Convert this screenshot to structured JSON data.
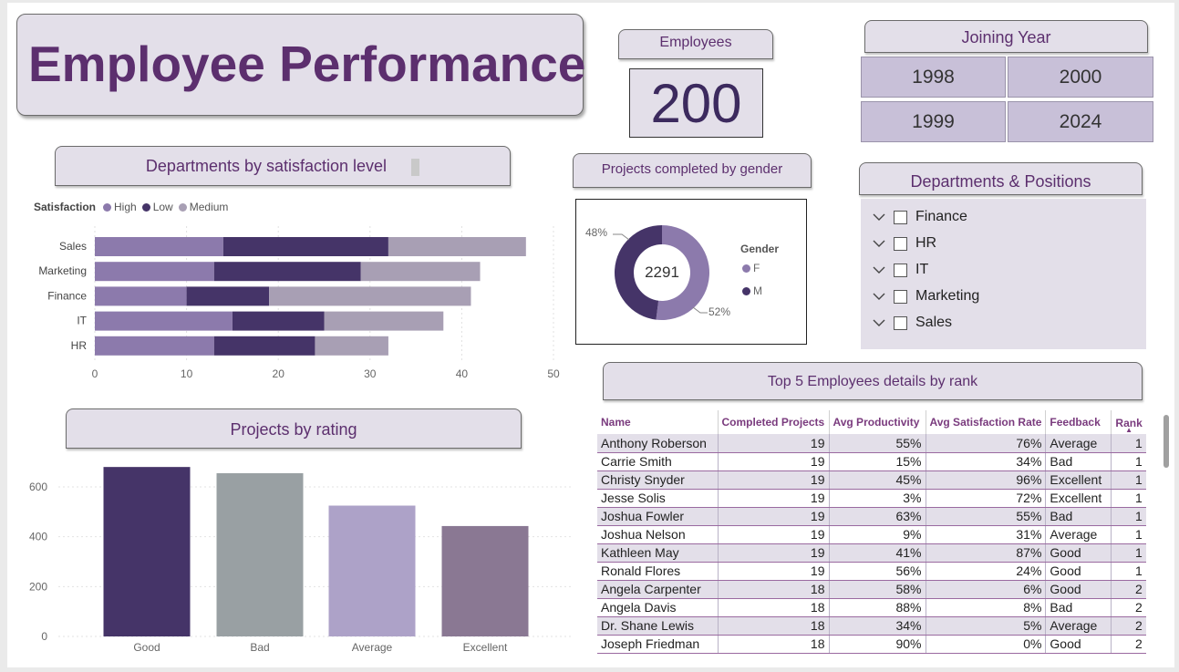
{
  "title": "Employee Performance",
  "kpi": {
    "label": "Employees",
    "value": "200"
  },
  "joining_year": {
    "label": "Joining Year",
    "buttons": [
      "1998",
      "2000",
      "1999",
      "2024"
    ]
  },
  "dept_positions": {
    "label": "Departments & Positions",
    "items": [
      "Finance",
      "HR",
      "IT",
      "Marketing",
      "Sales"
    ]
  },
  "satisfaction_chart": {
    "header": "Departments by satisfaction level",
    "legend_title": "Satisfaction",
    "legend": [
      "High",
      "Low",
      "Medium"
    ],
    "colors": {
      "High": "#8c7aac",
      "Low": "#453468",
      "Medium": "#a89fb4"
    }
  },
  "gender_chart": {
    "header": "Projects completed by gender",
    "center_value": "2291",
    "legend_title": "Gender",
    "legend": [
      "F",
      "M"
    ],
    "pct_m": "48%",
    "pct_f": "52%",
    "colors": {
      "F": "#8c7aac",
      "M": "#453468"
    }
  },
  "rating_chart": {
    "header": "Projects by rating"
  },
  "top5": {
    "header": "Top 5 Employees details by rank",
    "columns": [
      "Name",
      "Completed Projects",
      "Avg Productivity",
      "Avg Satisfaction Rate",
      "Feedback",
      "Rank"
    ],
    "rows": [
      [
        "Anthony Roberson",
        "19",
        "55%",
        "76%",
        "Average",
        "1"
      ],
      [
        "Carrie Smith",
        "19",
        "15%",
        "34%",
        "Bad",
        "1"
      ],
      [
        "Christy Snyder",
        "19",
        "45%",
        "96%",
        "Excellent",
        "1"
      ],
      [
        "Jesse Solis",
        "19",
        "3%",
        "72%",
        "Excellent",
        "1"
      ],
      [
        "Joshua Fowler",
        "19",
        "63%",
        "55%",
        "Bad",
        "1"
      ],
      [
        "Joshua Nelson",
        "19",
        "9%",
        "31%",
        "Average",
        "1"
      ],
      [
        "Kathleen May",
        "19",
        "41%",
        "87%",
        "Good",
        "1"
      ],
      [
        "Ronald Flores",
        "19",
        "56%",
        "24%",
        "Good",
        "1"
      ],
      [
        "Angela Carpenter",
        "18",
        "58%",
        "6%",
        "Good",
        "2"
      ],
      [
        "Angela Davis",
        "18",
        "88%",
        "8%",
        "Bad",
        "2"
      ],
      [
        "Dr. Shane Lewis",
        "18",
        "34%",
        "5%",
        "Average",
        "2"
      ],
      [
        "Joseph Friedman",
        "18",
        "90%",
        "0%",
        "Good",
        "2"
      ]
    ]
  },
  "chart_data": [
    {
      "type": "bar",
      "orientation": "horizontal",
      "stacked": true,
      "title": "Departments by satisfaction level",
      "categories": [
        "Sales",
        "Marketing",
        "Finance",
        "IT",
        "HR"
      ],
      "series": [
        {
          "name": "High",
          "values": [
            14,
            13,
            10,
            15,
            13
          ]
        },
        {
          "name": "Low",
          "values": [
            18,
            16,
            9,
            10,
            11
          ]
        },
        {
          "name": "Medium",
          "values": [
            15,
            13,
            22,
            13,
            8
          ]
        }
      ],
      "xlim": [
        0,
        50
      ],
      "xticks": [
        0,
        10,
        20,
        30,
        40,
        50
      ],
      "grid": true,
      "legend": "top-left"
    },
    {
      "type": "pie",
      "donut": true,
      "title": "Projects completed by gender",
      "categories": [
        "F",
        "M"
      ],
      "values": [
        52,
        48
      ],
      "center_label": "2291",
      "legend": "right"
    },
    {
      "type": "bar",
      "title": "Projects by rating",
      "categories": [
        "Good",
        "Bad",
        "Average",
        "Excellent"
      ],
      "values": [
        680,
        655,
        525,
        443
      ],
      "colors": [
        "#453468",
        "#99a0a3",
        "#ada2c8",
        "#8a7893"
      ],
      "ylim": [
        0,
        700
      ],
      "yticks": [
        0,
        200,
        400,
        600
      ],
      "grid": true
    }
  ]
}
